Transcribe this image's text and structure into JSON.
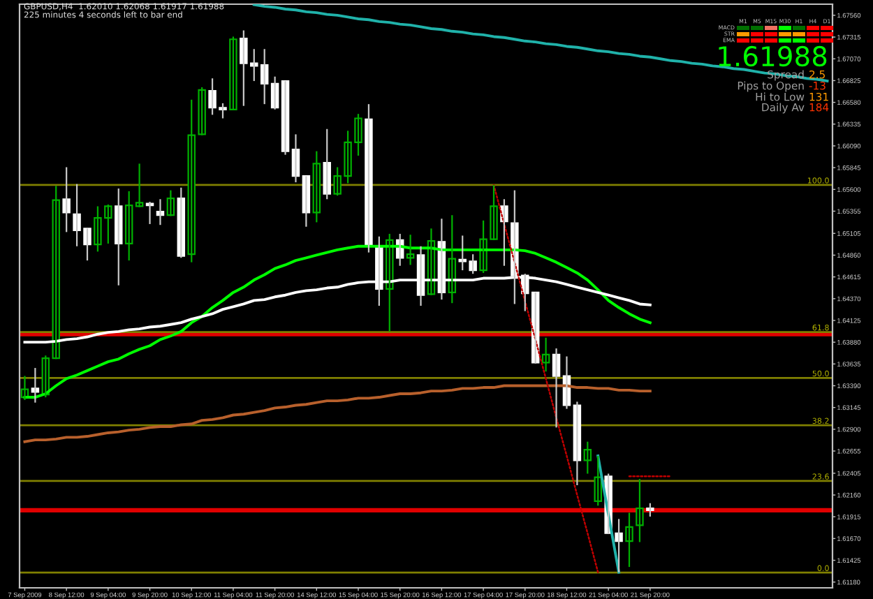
{
  "chart_data": {
    "type": "candlestick",
    "categories": [
      "7 Sep 2009",
      null,
      null,
      null,
      "8 Sep 12:00",
      null,
      null,
      null,
      "9 Sep 04:00",
      null,
      null,
      null,
      "9 Sep 20:00",
      null,
      null,
      null,
      "10 Sep 12:00",
      null,
      null,
      null,
      "11 Sep 04:00",
      null,
      null,
      null,
      "11 Sep 20:00",
      null,
      null,
      null,
      "14 Sep 12:00",
      null,
      null,
      null,
      "15 Sep 04:00",
      null,
      null,
      null,
      "15 Sep 20:00",
      null,
      null,
      null,
      "16 Sep 12:00",
      null,
      null,
      null,
      "17 Sep 04:00",
      null,
      null,
      null,
      "17 Sep 20:00",
      null,
      null,
      null,
      "18 Sep 12:00",
      null,
      null,
      null,
      "21 Sep 04:00",
      null,
      null,
      null,
      "21 Sep 20:00",
      null,
      null,
      null,
      null,
      null,
      null,
      null,
      null,
      null,
      null,
      null,
      null,
      null,
      null,
      null,
      null,
      null
    ],
    "ohlc": [
      [
        1.6326,
        1.635,
        1.6323,
        1.6335
      ],
      [
        1.6336,
        1.6359,
        1.632,
        1.6332
      ],
      [
        1.6329,
        1.6373,
        1.6326,
        1.637
      ],
      [
        1.637,
        1.6564,
        1.6369,
        1.6548
      ],
      [
        1.6549,
        1.6585,
        1.6512,
        1.6534
      ],
      [
        1.6532,
        1.6566,
        1.6496,
        1.6514
      ],
      [
        1.6516,
        1.6516,
        1.648,
        1.6498
      ],
      [
        1.6498,
        1.6541,
        1.649,
        1.6528
      ],
      [
        1.6528,
        1.6543,
        1.6499,
        1.6541
      ],
      [
        1.6541,
        1.6561,
        1.6452,
        1.6499
      ],
      [
        1.6499,
        1.6558,
        1.648,
        1.6542
      ],
      [
        1.6541,
        1.6589,
        1.654,
        1.6545
      ],
      [
        1.6544,
        1.6546,
        1.6521,
        1.6542
      ],
      [
        1.6535,
        1.6549,
        1.652,
        1.6531
      ],
      [
        1.6531,
        1.6559,
        1.653,
        1.655
      ],
      [
        1.655,
        1.6562,
        1.6483,
        1.6485
      ],
      [
        1.6487,
        1.6661,
        1.6478,
        1.6621
      ],
      [
        1.6622,
        1.6675,
        1.6621,
        1.6672
      ],
      [
        1.6671,
        1.6685,
        1.6644,
        1.6652
      ],
      [
        1.6652,
        1.6657,
        1.664,
        1.665
      ],
      [
        1.665,
        1.6732,
        1.665,
        1.6729
      ],
      [
        1.673,
        1.6739,
        1.6654,
        1.6702
      ],
      [
        1.6702,
        1.6718,
        1.6682,
        1.6699
      ],
      [
        1.67,
        1.6718,
        1.6656,
        1.6679
      ],
      [
        1.6679,
        1.6687,
        1.665,
        1.6652
      ],
      [
        1.6682,
        1.6682,
        1.6599,
        1.6603
      ],
      [
        1.6605,
        1.6622,
        1.6568,
        1.6575
      ],
      [
        1.6575,
        1.6575,
        1.6518,
        1.6534
      ],
      [
        1.6534,
        1.6603,
        1.6523,
        1.6589
      ],
      [
        1.659,
        1.6628,
        1.6549,
        1.6555
      ],
      [
        1.6555,
        1.6585,
        1.6553,
        1.6575
      ],
      [
        1.6575,
        1.6626,
        1.6567,
        1.6613
      ],
      [
        1.6613,
        1.6645,
        1.6598,
        1.664
      ],
      [
        1.6639,
        1.6656,
        1.6489,
        1.6496
      ],
      [
        1.6496,
        1.6507,
        1.6429,
        1.6448
      ],
      [
        1.6448,
        1.651,
        1.64,
        1.6503
      ],
      [
        1.6503,
        1.651,
        1.6474,
        1.6483
      ],
      [
        1.6483,
        1.6509,
        1.6475,
        1.6487
      ],
      [
        1.6486,
        1.6496,
        1.6429,
        1.6441
      ],
      [
        1.6442,
        1.6516,
        1.6441,
        1.6502
      ],
      [
        1.6501,
        1.6527,
        1.6436,
        1.6444
      ],
      [
        1.6444,
        1.6531,
        1.6432,
        1.6482
      ],
      [
        1.6481,
        1.6508,
        1.6469,
        1.6479
      ],
      [
        1.6479,
        1.6487,
        1.6465,
        1.6469
      ],
      [
        1.6469,
        1.6525,
        1.6466,
        1.6504
      ],
      [
        1.6504,
        1.6565,
        1.6503,
        1.6541
      ],
      [
        1.6541,
        1.6549,
        1.6474,
        1.6524
      ],
      [
        1.6522,
        1.6559,
        1.6431,
        1.6463
      ],
      [
        1.6463,
        1.6465,
        1.6423,
        1.6443
      ],
      [
        1.6444,
        1.6444,
        1.6364,
        1.6365
      ],
      [
        1.6365,
        1.6393,
        1.6355,
        1.6374
      ],
      [
        1.6374,
        1.6381,
        1.6292,
        1.635
      ],
      [
        1.635,
        1.6372,
        1.6313,
        1.6317
      ],
      [
        1.6317,
        1.6321,
        1.6227,
        1.6255
      ],
      [
        1.6255,
        1.6276,
        1.624,
        1.6267
      ],
      [
        1.6209,
        1.626,
        1.6204,
        1.6236
      ],
      [
        1.6237,
        1.624,
        1.6172,
        1.6173
      ],
      [
        1.6173,
        1.6189,
        1.6129,
        1.6164
      ],
      [
        1.6164,
        1.6196,
        1.6135,
        1.618
      ],
      [
        1.6182,
        1.6234,
        1.6163,
        1.6201
      ],
      [
        1.6201,
        1.62068,
        1.61917,
        1.61988
      ],
      null,
      null,
      null,
      null,
      null,
      null,
      null,
      null,
      null,
      null,
      null,
      null,
      null,
      null,
      null,
      null,
      null
    ],
    "colors": [
      "#00b000",
      "#ffffff",
      "#00b000",
      "#00b000",
      "#ffffff",
      "#ffffff",
      "#ffffff",
      "#00b000",
      "#00b000",
      "#ffffff",
      "#00b000",
      "#00b000",
      "#ffffff",
      "#ffffff",
      "#00b000",
      "#ffffff",
      "#00b000",
      "#00b000",
      "#ffffff",
      "#ffffff",
      "#00b000",
      "#ffffff",
      "#ffffff",
      "#ffffff",
      "#ffffff",
      "#ffffff",
      "#ffffff",
      "#ffffff",
      "#00b000",
      "#ffffff",
      "#00b000",
      "#00b000",
      "#00b000",
      "#ffffff",
      "#ffffff",
      "#00b000",
      "#ffffff",
      "#00b000",
      "#ffffff",
      "#00b000",
      "#ffffff",
      "#00b000",
      "#ffffff",
      "#ffffff",
      "#00b000",
      "#00b000",
      "#ffffff",
      "#ffffff",
      "#ffffff",
      "#ffffff",
      "#00b000",
      "#ffffff",
      "#ffffff",
      "#ffffff",
      "#00b000",
      "#00b000",
      "#ffffff",
      "#ffffff",
      "#00b000",
      "#00b000",
      "#ffffff",
      null,
      null,
      null,
      null,
      null,
      null,
      null,
      null,
      null,
      null,
      null,
      null,
      null,
      null,
      null,
      null,
      null
    ],
    "series": [
      {
        "type": "line",
        "color": "#00ff00",
        "values": [
          1.6326,
          1.6326,
          1.633,
          1.6339,
          1.6347,
          1.6351,
          1.6356,
          1.6361,
          1.6366,
          1.6369,
          1.6375,
          1.638,
          1.6384,
          1.6391,
          1.6395,
          1.64,
          1.641,
          1.6417,
          1.6427,
          1.6435,
          1.6444,
          1.645,
          1.6458,
          1.6464,
          1.6471,
          1.6475,
          1.648,
          1.6483,
          1.6486,
          1.6489,
          1.6492,
          1.6494,
          1.6496,
          1.6496,
          1.6496,
          1.6496,
          1.6496,
          1.6494,
          1.6494,
          1.6494,
          1.6492,
          1.6492,
          1.6492,
          1.6492,
          1.6492,
          1.6492,
          1.6492,
          1.6492,
          1.6491,
          1.6488,
          1.6483,
          1.6478,
          1.6472,
          1.6466,
          1.6458,
          1.6447,
          1.6435,
          1.6427,
          1.642,
          1.6414,
          1.641,
          null,
          null,
          null,
          null,
          null,
          null,
          null,
          null,
          null,
          null,
          null,
          null,
          null,
          null,
          null,
          null,
          null
        ]
      },
      {
        "type": "line",
        "color": "#ffffff",
        "values": [
          1.6388,
          1.6388,
          1.6388,
          1.6389,
          1.6391,
          1.6392,
          1.6394,
          1.6397,
          1.6399,
          1.64,
          1.6402,
          1.6403,
          1.6405,
          1.6406,
          1.6408,
          1.641,
          1.6414,
          1.6417,
          1.642,
          1.6425,
          1.6428,
          1.6431,
          1.6435,
          1.6436,
          1.6439,
          1.6441,
          1.6444,
          1.6446,
          1.6447,
          1.6449,
          1.645,
          1.6453,
          1.6455,
          1.6456,
          1.6456,
          1.6456,
          1.6458,
          1.6458,
          1.6458,
          1.6458,
          1.6458,
          1.6458,
          1.6458,
          1.6458,
          1.646,
          1.646,
          1.646,
          1.6461,
          1.6461,
          1.646,
          1.6458,
          1.6456,
          1.6453,
          1.645,
          1.6447,
          1.6444,
          1.6441,
          1.6438,
          1.6435,
          1.6431,
          1.643,
          null,
          null,
          null,
          null,
          null,
          null,
          null,
          null,
          null,
          null,
          null,
          null,
          null,
          null,
          null,
          null,
          null
        ]
      },
      {
        "type": "line",
        "color": "#b8602c",
        "values": [
          1.6276,
          1.6278,
          1.6278,
          1.6279,
          1.6281,
          1.6281,
          1.6282,
          1.6284,
          1.6286,
          1.6287,
          1.6289,
          1.629,
          1.6292,
          1.6293,
          1.6293,
          1.6295,
          1.6296,
          1.63,
          1.6301,
          1.6303,
          1.6306,
          1.6307,
          1.6309,
          1.6311,
          1.6314,
          1.6315,
          1.6317,
          1.6318,
          1.632,
          1.6322,
          1.6322,
          1.6323,
          1.6325,
          1.6325,
          1.6326,
          1.6328,
          1.633,
          1.633,
          1.6331,
          1.6333,
          1.6333,
          1.6334,
          1.6336,
          1.6336,
          1.6337,
          1.6337,
          1.6339,
          1.6339,
          1.6339,
          1.6339,
          1.6339,
          1.6339,
          1.6339,
          1.6337,
          1.6337,
          1.6336,
          1.6336,
          1.6334,
          1.6334,
          1.6333,
          1.6333,
          null,
          null,
          null,
          null,
          null,
          null,
          null,
          null,
          null,
          null,
          null,
          null,
          null,
          null,
          null,
          null,
          null
        ]
      },
      {
        "type": "line",
        "color": "#20b2aa",
        "values": [
          null,
          null,
          null,
          null,
          null,
          null,
          null,
          null,
          null,
          null,
          null,
          null,
          null,
          null,
          null,
          null,
          null,
          null,
          null,
          null,
          null,
          null,
          1.6768,
          1.6766,
          1.6765,
          1.6763,
          1.6762,
          1.676,
          1.6759,
          1.6757,
          1.6756,
          1.6754,
          1.6752,
          1.6751,
          1.6749,
          1.6748,
          1.6746,
          1.6745,
          1.6743,
          1.6741,
          1.674,
          1.6738,
          1.6737,
          1.6735,
          1.6734,
          1.6732,
          1.6731,
          1.6729,
          1.6727,
          1.6726,
          1.6724,
          1.6723,
          1.6721,
          1.672,
          1.6718,
          1.6716,
          1.6715,
          1.6713,
          1.6712,
          1.671,
          1.6709,
          1.6707,
          1.6705,
          1.6704,
          1.6702,
          1.6701,
          1.6699,
          1.6698,
          1.6696,
          1.6695,
          1.6693,
          1.6691,
          1.669,
          1.6688,
          1.6687,
          1.6685,
          1.6684,
          1.6682
        ]
      },
      {
        "type": "line",
        "color": "#c00000",
        "line_style": "dotted",
        "values": [
          null,
          null,
          null,
          null,
          null,
          null,
          null,
          null,
          null,
          null,
          null,
          null,
          null,
          null,
          null,
          null,
          null,
          null,
          null,
          null,
          null,
          null,
          null,
          null,
          null,
          null,
          null,
          null,
          null,
          null,
          null,
          null,
          null,
          null,
          null,
          null,
          null,
          null,
          null,
          null,
          null,
          null,
          null,
          null,
          null,
          1.6565,
          1.6521,
          1.6478,
          1.6434,
          1.6391,
          1.6347,
          1.6303,
          1.626,
          1.6216,
          1.6173,
          1.6129,
          null,
          null,
          null,
          null,
          null,
          null,
          null,
          null,
          null,
          null,
          null,
          null,
          null,
          null,
          null,
          null,
          null,
          null,
          null,
          null,
          null,
          null
        ]
      },
      {
        "type": "line",
        "color": "#20b2aa",
        "values": [
          null,
          null,
          null,
          null,
          null,
          null,
          null,
          null,
          null,
          null,
          null,
          null,
          null,
          null,
          null,
          null,
          null,
          null,
          null,
          null,
          null,
          null,
          null,
          null,
          null,
          null,
          null,
          null,
          null,
          null,
          null,
          null,
          null,
          null,
          null,
          null,
          null,
          null,
          null,
          null,
          null,
          null,
          null,
          null,
          null,
          null,
          null,
          null,
          null,
          null,
          null,
          null,
          null,
          null,
          null,
          1.626,
          1.6194,
          1.6129,
          null,
          null,
          null,
          null,
          null,
          null,
          null,
          null,
          null,
          null,
          null,
          null,
          null,
          null,
          null,
          null,
          null,
          null,
          null,
          null
        ]
      },
      {
        "type": "line",
        "color": "#c00000",
        "line_style": "dotted",
        "values": [
          null,
          null,
          null,
          null,
          null,
          null,
          null,
          null,
          null,
          null,
          null,
          null,
          null,
          null,
          null,
          null,
          null,
          null,
          null,
          null,
          null,
          null,
          null,
          null,
          null,
          null,
          null,
          null,
          null,
          null,
          null,
          null,
          null,
          null,
          null,
          null,
          null,
          null,
          null,
          null,
          null,
          null,
          null,
          null,
          null,
          null,
          null,
          null,
          null,
          null,
          null,
          null,
          null,
          null,
          null,
          null,
          null,
          null,
          1.6237,
          1.6237,
          1.6237,
          1.6237,
          1.6237,
          null,
          null,
          null,
          null,
          null,
          null,
          null,
          null,
          null,
          null,
          null,
          null,
          null,
          null,
          null
        ]
      }
    ],
    "ylim": [
      1.61115,
      1.67685
    ],
    "yticks": [
      {
        "value": 1.6756,
        "label": "1.67560"
      },
      {
        "value": 1.67315,
        "label": "1.67315"
      },
      {
        "value": 1.6707,
        "label": "1.67070"
      },
      {
        "value": 1.66825,
        "label": "1.66825"
      },
      {
        "value": 1.6658,
        "label": "1.66580"
      },
      {
        "value": 1.66335,
        "label": "1.66335"
      },
      {
        "value": 1.6609,
        "label": "1.66090"
      },
      {
        "value": 1.65845,
        "label": "1.65845"
      },
      {
        "value": 1.656,
        "label": "1.65600"
      },
      {
        "value": 1.65355,
        "label": "1.65355"
      },
      {
        "value": 1.65105,
        "label": "1.65105"
      },
      {
        "value": 1.6486,
        "label": "1.64860"
      },
      {
        "value": 1.64615,
        "label": "1.64615"
      },
      {
        "value": 1.6437,
        "label": "1.64370"
      },
      {
        "value": 1.64125,
        "label": "1.64125"
      },
      {
        "value": 1.6388,
        "label": "1.63880"
      },
      {
        "value": 1.63635,
        "label": "1.63635"
      },
      {
        "value": 1.6339,
        "label": "1.63390"
      },
      {
        "value": 1.63145,
        "label": "1.63145"
      },
      {
        "value": 1.629,
        "label": "1.62900"
      },
      {
        "value": 1.62655,
        "label": "1.62655"
      },
      {
        "value": 1.62405,
        "label": "1.62405"
      },
      {
        "value": 1.6216,
        "label": "1.62160"
      },
      {
        "value": 1.61915,
        "label": "1.61915"
      },
      {
        "value": 1.6167,
        "label": "1.61670"
      },
      {
        "value": 1.61425,
        "label": "1.61425"
      },
      {
        "value": 1.6118,
        "label": "1.61180"
      }
    ],
    "ref_lines": [
      {
        "axis": "y",
        "value": 1.6397,
        "color": "#e00000"
      },
      {
        "axis": "y",
        "value": 1.61988,
        "color": "#e00000"
      },
      {
        "axis": "y",
        "value": 1.65651,
        "color": "#808000"
      },
      {
        "axis": "y",
        "value": 1.63995,
        "color": "#808000"
      },
      {
        "axis": "y",
        "value": 1.63478,
        "color": "#808000"
      },
      {
        "axis": "y",
        "value": 1.62945,
        "color": "#808000"
      },
      {
        "axis": "y",
        "value": 1.62318,
        "color": "#808000"
      },
      {
        "axis": "y",
        "value": 1.61287,
        "color": "#808000"
      }
    ],
    "annotations": [
      "GBPUSD,H4  1.62010 1.62068 1.61917 1.61988",
      "225 minutes 4 seconds left to bar end",
      "1.61988",
      "Spread",
      "2.5",
      "Pips to Open",
      "-13",
      "Hi to Low",
      "131",
      "Daily Av",
      "184",
      "M1",
      "M5",
      "M15",
      "M30",
      "H1",
      "H4",
      "D1",
      "MACD",
      "STR",
      "EMA",
      {
        "text": "100.0",
        "y": 1.65651
      },
      {
        "text": "61.8",
        "y": 1.63995
      },
      {
        "text": "50.0",
        "y": 1.63478
      },
      {
        "text": "38.2",
        "y": 1.62945
      },
      {
        "text": "23.6",
        "y": 1.62318
      },
      {
        "text": "0.0",
        "y": 1.61287
      }
    ],
    "grid": false,
    "legend": false
  }
}
